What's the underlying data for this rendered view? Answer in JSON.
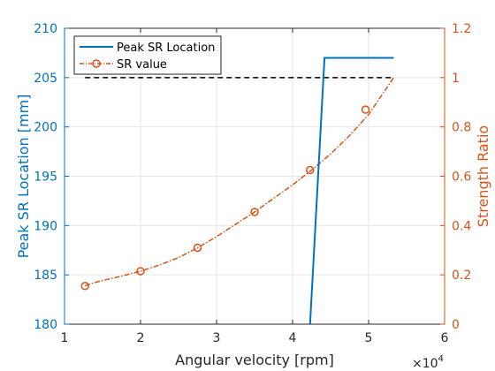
{
  "chart_data": {
    "type": "line",
    "xlabel": "Angular velocity [rpm]",
    "x_exponent_base": "×10",
    "x_exponent_power": "4",
    "xlim": [
      10000,
      60000
    ],
    "xticks": [
      1,
      2,
      3,
      4,
      5,
      6
    ],
    "ylabel_left": "Peak SR Location [mm]",
    "ylim_left": [
      180,
      210
    ],
    "yticks_left": [
      180,
      185,
      190,
      195,
      200,
      205,
      210
    ],
    "ylabel_right": "Strength Ratio",
    "ylim_right": [
      0,
      1.2
    ],
    "yticks_right": [
      "0",
      "0.2",
      "0.4",
      "0.6",
      "0.8",
      "1",
      "1.2"
    ],
    "grid": true,
    "legend_position": "top-left",
    "colors": {
      "left_axis": "#0072BD",
      "right_axis": "#D95319",
      "reference": "#000000",
      "grid": "#e6e6e6"
    },
    "series": [
      {
        "name": "Peak SR Location",
        "axis": "left",
        "style": "solid",
        "x": [
          42300,
          44200,
          53300
        ],
        "y": [
          180,
          207,
          207
        ]
      },
      {
        "name": "SR value",
        "axis": "right",
        "style": "dashdot-circle",
        "x": [
          12700,
          13500,
          15000,
          17500,
          20000,
          22500,
          25000,
          27500,
          30000,
          32500,
          35000,
          37500,
          40000,
          42500,
          45000,
          47500,
          50000,
          53300
        ],
        "y": [
          0.155,
          0.165,
          0.177,
          0.195,
          0.215,
          0.24,
          0.27,
          0.31,
          0.355,
          0.405,
          0.455,
          0.51,
          0.565,
          0.625,
          0.69,
          0.765,
          0.85,
          1.0
        ],
        "markers_x": [
          12700,
          20000,
          27500,
          35000,
          42300,
          49600
        ],
        "markers_y": [
          0.155,
          0.215,
          0.31,
          0.455,
          0.625,
          0.87
        ]
      },
      {
        "axis": "left",
        "style": "dashed",
        "x": [
          12700,
          53300
        ],
        "y": [
          205,
          205
        ]
      }
    ]
  }
}
